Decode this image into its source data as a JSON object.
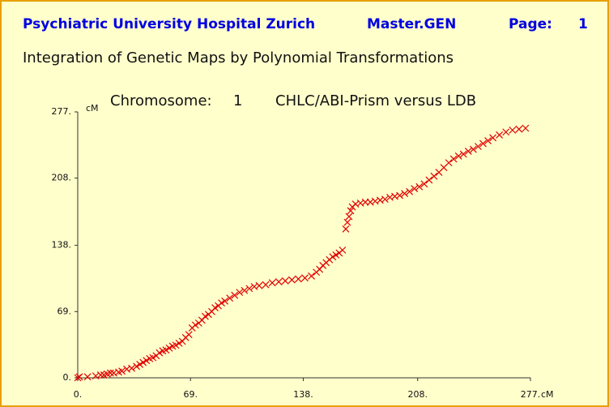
{
  "header": {
    "institution": "Psychiatric University Hospital Zurich",
    "program": "Master.GEN",
    "page_label": "Page:",
    "page_number": "1"
  },
  "chart_data": {
    "type": "scatter",
    "title": "Integration of Genetic Maps by Polynomial Transformations",
    "chromosome_label": "Chromosome:",
    "chromosome": "1",
    "comparison": "CHLC/ABI-Prism versus LDB",
    "x_label": "cM",
    "y_label": "cM",
    "color": "#e00000",
    "marker": "x",
    "xlim": [
      0,
      277
    ],
    "ylim": [
      0,
      277
    ],
    "xticks": [
      {
        "value": 0,
        "label": "0."
      },
      {
        "value": 69,
        "label": "69."
      },
      {
        "value": 138,
        "label": "138."
      },
      {
        "value": 208,
        "label": "208."
      },
      {
        "value": 277,
        "label": "277."
      }
    ],
    "yticks": [
      {
        "value": 0,
        "label": "0."
      },
      {
        "value": 69,
        "label": "69."
      },
      {
        "value": 138,
        "label": "138."
      },
      {
        "value": 208,
        "label": "208."
      },
      {
        "value": 277,
        "label": "277."
      }
    ],
    "x": [
      0,
      1,
      6,
      11,
      14,
      16,
      18,
      20,
      22,
      25,
      27,
      30,
      33,
      36,
      38,
      40,
      42,
      44,
      46,
      48,
      50,
      52,
      54,
      56,
      58,
      60,
      62,
      64,
      66,
      68,
      70,
      72,
      74,
      76,
      78,
      80,
      82,
      84,
      86,
      88,
      90,
      93,
      96,
      99,
      102,
      105,
      108,
      111,
      115,
      119,
      123,
      127,
      131,
      135,
      139,
      143,
      146,
      148,
      150,
      152,
      154,
      156,
      158,
      160,
      162,
      164,
      165,
      166,
      167,
      168,
      170,
      173,
      176,
      179,
      182,
      185,
      188,
      191,
      194,
      197,
      200,
      203,
      206,
      209,
      212,
      215,
      218,
      221,
      224,
      227,
      230,
      233,
      236,
      239,
      242,
      245,
      248,
      251,
      254,
      258,
      262,
      266,
      270,
      274
    ],
    "y": [
      0,
      1,
      1,
      2,
      3,
      3,
      4,
      5,
      5,
      6,
      7,
      9,
      10,
      12,
      14,
      16,
      18,
      20,
      21,
      23,
      26,
      28,
      29,
      31,
      33,
      34,
      36,
      38,
      42,
      45,
      52,
      55,
      57,
      60,
      64,
      66,
      69,
      73,
      75,
      78,
      80,
      83,
      86,
      89,
      91,
      93,
      95,
      96,
      97,
      99,
      100,
      101,
      102,
      103,
      104,
      106,
      110,
      113,
      117,
      120,
      123,
      126,
      128,
      130,
      133,
      155,
      162,
      168,
      174,
      178,
      181,
      182,
      183,
      183,
      184,
      185,
      186,
      188,
      189,
      190,
      192,
      194,
      197,
      199,
      202,
      206,
      210,
      214,
      219,
      224,
      228,
      231,
      233,
      236,
      238,
      241,
      244,
      247,
      250,
      253,
      256,
      258,
      259,
      260
    ]
  }
}
